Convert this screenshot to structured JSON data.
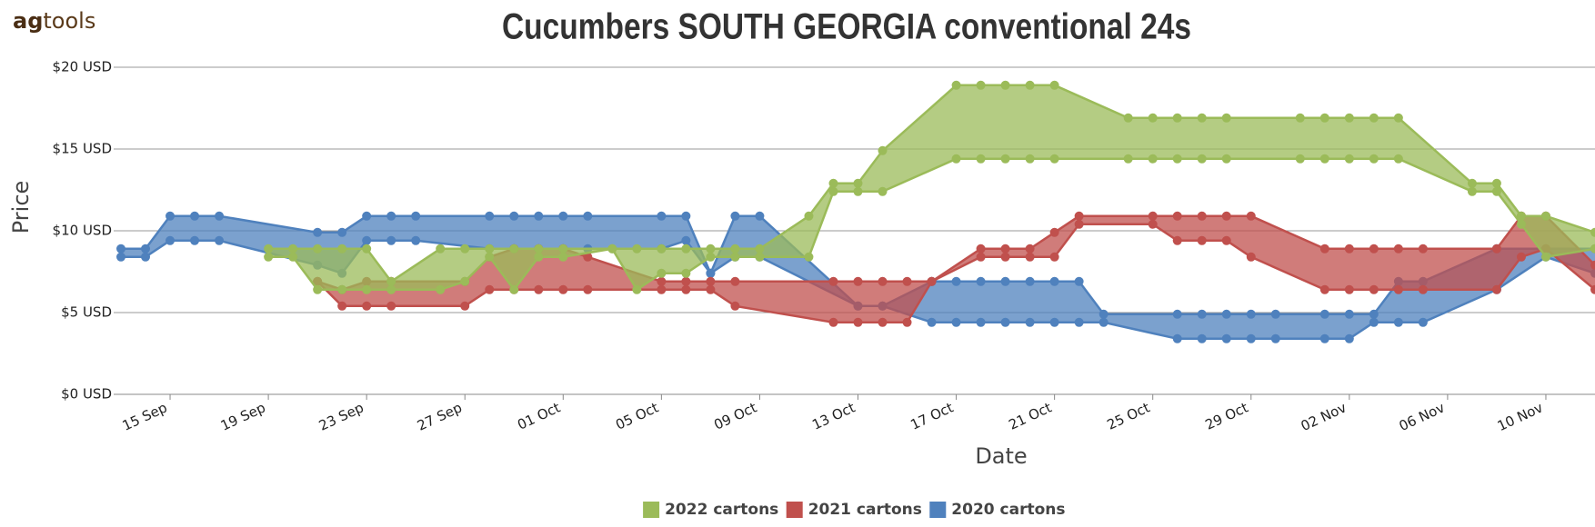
{
  "logo": {
    "bold": "ag",
    "rest": "tools"
  },
  "chart_data": {
    "type": "range-area",
    "title": "Cucumbers SOUTH GEORGIA conventional 24s",
    "x_label": "Date",
    "y_label": "Price",
    "xlim": [
      "13 Sep",
      "12 Nov"
    ],
    "xticks": [
      "15 Sep",
      "19 Sep",
      "23 Sep",
      "27 Sep",
      "01 Oct",
      "05 Oct",
      "09 Oct",
      "13 Oct",
      "17 Oct",
      "21 Oct",
      "25 Oct",
      "29 Oct",
      "02 Nov",
      "06 Nov",
      "10 Nov"
    ],
    "ylim": [
      0,
      20
    ],
    "yticks": [
      {
        "value": 0,
        "label": "$0 USD"
      },
      {
        "value": 5,
        "label": "$5 USD"
      },
      {
        "value": 10,
        "label": "$10 USD"
      },
      {
        "value": 15,
        "label": "$15 USD"
      },
      {
        "value": 20,
        "label": "$20 USD"
      }
    ],
    "grid": true,
    "legend": "bottom",
    "series": [
      {
        "name": "2022 cartons",
        "color": "#9bbb59",
        "x": [
          "19 Sep",
          "20 Sep",
          "21 Sep",
          "22 Sep",
          "23 Sep",
          "24 Sep",
          "26 Sep",
          "27 Sep",
          "28 Sep",
          "29 Sep",
          "30 Sep",
          "01 Oct",
          "03 Oct",
          "04 Oct",
          "05 Oct",
          "06 Oct",
          "07 Oct",
          "08 Oct",
          "09 Oct",
          "11 Oct",
          "12 Oct",
          "13 Oct",
          "14 Oct",
          "17 Oct",
          "18 Oct",
          "19 Oct",
          "20 Oct",
          "21 Oct",
          "24 Oct",
          "25 Oct",
          "26 Oct",
          "27 Oct",
          "28 Oct",
          "31 Oct",
          "01 Nov",
          "02 Nov",
          "03 Nov",
          "04 Nov",
          "07 Nov",
          "08 Nov",
          "09 Nov",
          "10 Nov",
          "12 Nov"
        ],
        "high": [
          8.9,
          8.9,
          8.9,
          8.9,
          8.9,
          6.9,
          8.9,
          8.9,
          8.9,
          8.9,
          8.9,
          8.9,
          8.9,
          8.9,
          8.9,
          8.9,
          8.9,
          8.9,
          8.9,
          10.9,
          12.9,
          12.9,
          14.9,
          18.9,
          18.9,
          18.9,
          18.9,
          18.9,
          16.9,
          16.9,
          16.9,
          16.9,
          16.9,
          16.9,
          16.9,
          16.9,
          16.9,
          16.9,
          12.9,
          12.9,
          10.9,
          10.9,
          9.9
        ],
        "low": [
          8.4,
          8.4,
          6.4,
          6.4,
          6.4,
          6.4,
          6.4,
          6.9,
          8.4,
          6.4,
          8.4,
          8.4,
          8.9,
          6.4,
          7.4,
          7.4,
          8.4,
          8.4,
          8.4,
          8.4,
          12.4,
          12.4,
          12.4,
          14.4,
          14.4,
          14.4,
          14.4,
          14.4,
          14.4,
          14.4,
          14.4,
          14.4,
          14.4,
          14.4,
          14.4,
          14.4,
          14.4,
          14.4,
          12.4,
          12.4,
          10.4,
          8.4,
          8.9
        ]
      },
      {
        "name": "2021 cartons",
        "color": "#c0504d",
        "x": [
          "21 Sep",
          "22 Sep",
          "23 Sep",
          "24 Sep",
          "27 Sep",
          "28 Sep",
          "29 Sep",
          "30 Sep",
          "01 Oct",
          "02 Oct",
          "05 Oct",
          "06 Oct",
          "07 Oct",
          "08 Oct",
          "12 Oct",
          "13 Oct",
          "14 Oct",
          "15 Oct",
          "16 Oct",
          "18 Oct",
          "19 Oct",
          "20 Oct",
          "21 Oct",
          "22 Oct",
          "25 Oct",
          "26 Oct",
          "27 Oct",
          "28 Oct",
          "29 Oct",
          "01 Nov",
          "02 Nov",
          "03 Nov",
          "04 Nov",
          "05 Nov",
          "08 Nov",
          "09 Nov",
          "10 Nov",
          "12 Nov"
        ],
        "high": [
          6.9,
          6.4,
          6.9,
          6.9,
          6.9,
          8.4,
          8.9,
          8.9,
          8.9,
          8.4,
          6.9,
          6.9,
          6.9,
          6.9,
          6.9,
          6.9,
          6.9,
          6.9,
          6.9,
          8.9,
          8.9,
          8.9,
          9.9,
          10.9,
          10.9,
          10.9,
          10.9,
          10.9,
          10.9,
          8.9,
          8.9,
          8.9,
          8.9,
          8.9,
          8.9,
          10.9,
          10.9,
          7.9
        ],
        "low": [
          6.9,
          5.4,
          5.4,
          5.4,
          5.4,
          6.4,
          6.4,
          6.4,
          6.4,
          6.4,
          6.4,
          6.4,
          6.4,
          5.4,
          4.4,
          4.4,
          4.4,
          4.4,
          6.9,
          8.4,
          8.4,
          8.4,
          8.4,
          10.4,
          10.4,
          9.4,
          9.4,
          9.4,
          8.4,
          6.4,
          6.4,
          6.4,
          6.4,
          6.4,
          6.4,
          8.4,
          8.9,
          6.4
        ]
      },
      {
        "name": "2020 cartons",
        "color": "#4f81bd",
        "x": [
          "13 Sep",
          "14 Sep",
          "15 Sep",
          "16 Sep",
          "17 Sep",
          "21 Sep",
          "22 Sep",
          "23 Sep",
          "24 Sep",
          "25 Sep",
          "28 Sep",
          "29 Sep",
          "30 Sep",
          "01 Oct",
          "02 Oct",
          "05 Oct",
          "06 Oct",
          "07 Oct",
          "08 Oct",
          "09 Oct",
          "13 Oct",
          "14 Oct",
          "16 Oct",
          "17 Oct",
          "18 Oct",
          "19 Oct",
          "20 Oct",
          "21 Oct",
          "22 Oct",
          "23 Oct",
          "26 Oct",
          "27 Oct",
          "28 Oct",
          "29 Oct",
          "30 Oct",
          "01 Nov",
          "02 Nov",
          "03 Nov",
          "04 Nov",
          "05 Nov",
          "08 Nov",
          "10 Nov",
          "12 Nov"
        ],
        "high": [
          8.9,
          8.9,
          10.9,
          10.9,
          10.9,
          9.9,
          9.9,
          10.9,
          10.9,
          10.9,
          10.9,
          10.9,
          10.9,
          10.9,
          10.9,
          10.9,
          10.9,
          7.4,
          10.9,
          10.9,
          5.4,
          5.4,
          6.9,
          6.9,
          6.9,
          6.9,
          6.9,
          6.9,
          6.9,
          4.9,
          4.9,
          4.9,
          4.9,
          4.9,
          4.9,
          4.9,
          4.9,
          4.9,
          6.9,
          6.9,
          8.9,
          8.9,
          8.9
        ],
        "low": [
          8.4,
          8.4,
          9.4,
          9.4,
          9.4,
          7.9,
          7.4,
          9.4,
          9.4,
          9.4,
          8.9,
          8.9,
          8.9,
          8.9,
          8.9,
          8.9,
          9.4,
          7.4,
          8.4,
          8.4,
          5.4,
          5.4,
          4.4,
          4.4,
          4.4,
          4.4,
          4.4,
          4.4,
          4.4,
          4.4,
          3.4,
          3.4,
          3.4,
          3.4,
          3.4,
          3.4,
          3.4,
          4.4,
          4.4,
          4.4,
          6.4,
          8.4,
          7.4
        ]
      }
    ]
  }
}
